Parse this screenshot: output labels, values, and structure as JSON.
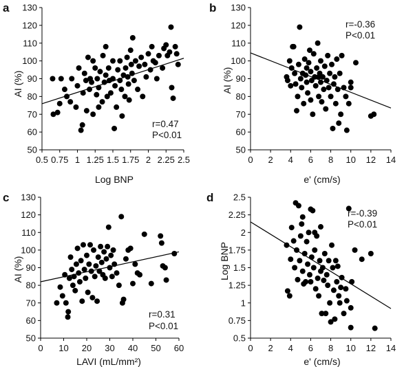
{
  "chart_data": [
    {
      "panel": "a",
      "type": "scatter",
      "xlabel": "Log BNP",
      "ylabel": "AI (%)",
      "xlim": [
        0.5,
        2.5
      ],
      "ylim": [
        50,
        130
      ],
      "xticks": [
        "0.5",
        "0.75",
        "1",
        "1.25",
        "1.5",
        "1.75",
        "2",
        "2.25",
        "2.5"
      ],
      "yticks": [
        "50",
        "60",
        "70",
        "80",
        "90",
        "100",
        "110",
        "120",
        "130"
      ],
      "annotations": [
        "r=0.47",
        "P<0.01"
      ],
      "trendline": [
        [
          0.5,
          75.9
        ],
        [
          2.5,
          101.5
        ]
      ],
      "points": [
        [
          0.65,
          90
        ],
        [
          0.66,
          70
        ],
        [
          0.72,
          71
        ],
        [
          0.75,
          76
        ],
        [
          0.77,
          90
        ],
        [
          0.82,
          84
        ],
        [
          0.85,
          80
        ],
        [
          0.9,
          77
        ],
        [
          0.92,
          90
        ],
        [
          0.98,
          74
        ],
        [
          1.0,
          86
        ],
        [
          1.02,
          96
        ],
        [
          1.05,
          61
        ],
        [
          1.07,
          64
        ],
        [
          1.08,
          82
        ],
        [
          1.1,
          93
        ],
        [
          1.12,
          89
        ],
        [
          1.13,
          72
        ],
        [
          1.15,
          102
        ],
        [
          1.17,
          84
        ],
        [
          1.18,
          90
        ],
        [
          1.2,
          88
        ],
        [
          1.22,
          70
        ],
        [
          1.22,
          100
        ],
        [
          1.25,
          96
        ],
        [
          1.27,
          81
        ],
        [
          1.28,
          90
        ],
        [
          1.3,
          85
        ],
        [
          1.3,
          74
        ],
        [
          1.32,
          94
        ],
        [
          1.35,
          77
        ],
        [
          1.36,
          103
        ],
        [
          1.38,
          88
        ],
        [
          1.4,
          108
        ],
        [
          1.4,
          92
        ],
        [
          1.42,
          80
        ],
        [
          1.44,
          96
        ],
        [
          1.45,
          89
        ],
        [
          1.47,
          82
        ],
        [
          1.5,
          100
        ],
        [
          1.5,
          90
        ],
        [
          1.52,
          62
        ],
        [
          1.53,
          86
        ],
        [
          1.55,
          74
        ],
        [
          1.57,
          95
        ],
        [
          1.6,
          89
        ],
        [
          1.6,
          100
        ],
        [
          1.62,
          84
        ],
        [
          1.63,
          69
        ],
        [
          1.65,
          92
        ],
        [
          1.67,
          80
        ],
        [
          1.68,
          96
        ],
        [
          1.7,
          102
        ],
        [
          1.71,
          91
        ],
        [
          1.72,
          87
        ],
        [
          1.73,
          78
        ],
        [
          1.75,
          106
        ],
        [
          1.76,
          98
        ],
        [
          1.77,
          93
        ],
        [
          1.78,
          113
        ],
        [
          1.8,
          89
        ],
        [
          1.82,
          100
        ],
        [
          1.85,
          84
        ],
        [
          1.87,
          97
        ],
        [
          1.9,
          102
        ],
        [
          1.92,
          80
        ],
        [
          1.95,
          98
        ],
        [
          1.97,
          91
        ],
        [
          2.0,
          104
        ],
        [
          2.03,
          95
        ],
        [
          2.05,
          108
        ],
        [
          2.07,
          100
        ],
        [
          2.1,
          99
        ],
        [
          2.12,
          90
        ],
        [
          2.15,
          103
        ],
        [
          2.2,
          96
        ],
        [
          2.22,
          107
        ],
        [
          2.25,
          109
        ],
        [
          2.27,
          103
        ],
        [
          2.3,
          105
        ],
        [
          2.32,
          119
        ],
        [
          2.33,
          85
        ],
        [
          2.35,
          79
        ],
        [
          2.38,
          108
        ],
        [
          2.4,
          104
        ],
        [
          2.42,
          98
        ]
      ]
    },
    {
      "panel": "b",
      "type": "scatter",
      "xlabel": "e' (cm/s)",
      "ylabel": "AI (%)",
      "xlim": [
        0,
        14
      ],
      "ylim": [
        50,
        130
      ],
      "xticks": [
        "0",
        "2",
        "4",
        "6",
        "8",
        "10",
        "12",
        "14"
      ],
      "yticks": [
        "50",
        "60",
        "70",
        "80",
        "90",
        "100",
        "110",
        "120",
        "130"
      ],
      "annotations": [
        "r=-0.36",
        "P<0.01"
      ],
      "trendline": [
        [
          0,
          104.5
        ],
        [
          14,
          73.5
        ]
      ],
      "points": [
        [
          3.6,
          91
        ],
        [
          3.7,
          89
        ],
        [
          3.9,
          100
        ],
        [
          4.0,
          86
        ],
        [
          4.1,
          96
        ],
        [
          4.3,
          108
        ],
        [
          4.4,
          93
        ],
        [
          4.5,
          87
        ],
        [
          4.6,
          72
        ],
        [
          4.7,
          80
        ],
        [
          4.8,
          98
        ],
        [
          4.9,
          119
        ],
        [
          5.0,
          90
        ],
        [
          5.1,
          85
        ],
        [
          5.2,
          93
        ],
        [
          5.3,
          76
        ],
        [
          5.4,
          101
        ],
        [
          5.5,
          92
        ],
        [
          5.6,
          88
        ],
        [
          5.7,
          82
        ],
        [
          5.8,
          99
        ],
        [
          5.9,
          106
        ],
        [
          6.0,
          94
        ],
        [
          6.0,
          78
        ],
        [
          6.1,
          89
        ],
        [
          6.2,
          70
        ],
        [
          6.3,
          104
        ],
        [
          6.4,
          91
        ],
        [
          6.5,
          86
        ],
        [
          6.6,
          96
        ],
        [
          6.7,
          110
        ],
        [
          6.8,
          80
        ],
        [
          6.9,
          93
        ],
        [
          7.0,
          88
        ],
        [
          7.0,
          100
        ],
        [
          7.1,
          77
        ],
        [
          7.2,
          91
        ],
        [
          7.3,
          84
        ],
        [
          7.4,
          97
        ],
        [
          7.5,
          73
        ],
        [
          7.6,
          89
        ],
        [
          7.7,
          103
        ],
        [
          7.8,
          85
        ],
        [
          7.9,
          93
        ],
        [
          8.0,
          80
        ],
        [
          8.1,
          98
        ],
        [
          8.2,
          62
        ],
        [
          8.3,
          87
        ],
        [
          8.4,
          91
        ],
        [
          8.5,
          76
        ],
        [
          8.6,
          101
        ],
        [
          8.7,
          84
        ],
        [
          8.8,
          65
        ],
        [
          8.9,
          93
        ],
        [
          9.0,
          70
        ],
        [
          9.1,
          103
        ],
        [
          9.3,
          85
        ],
        [
          9.5,
          80
        ],
        [
          9.6,
          61
        ],
        [
          9.8,
          76
        ],
        [
          10.0,
          85
        ],
        [
          10.0,
          88
        ],
        [
          10.5,
          99
        ],
        [
          12.0,
          69
        ],
        [
          12.3,
          70
        ],
        [
          4.2,
          108
        ],
        [
          5.6,
          96
        ],
        [
          6.8,
          91
        ]
      ]
    },
    {
      "panel": "c",
      "type": "scatter",
      "xlabel": "LAVI (mL/mm²)",
      "ylabel": "AI (%)",
      "xlim": [
        0,
        60
      ],
      "ylim": [
        50,
        130
      ],
      "xticks": [
        "0",
        "10",
        "20",
        "30",
        "40",
        "50",
        "60"
      ],
      "yticks": [
        "50",
        "60",
        "70",
        "80",
        "90",
        "100",
        "110",
        "120",
        "130"
      ],
      "annotations": [
        "r=0.31",
        "P<0.01"
      ],
      "trendline": [
        [
          0,
          82
        ],
        [
          60,
          99
        ]
      ],
      "points": [
        [
          7,
          70
        ],
        [
          8.5,
          79
        ],
        [
          9.5,
          74
        ],
        [
          10.5,
          86
        ],
        [
          11,
          70
        ],
        [
          11.8,
          62
        ],
        [
          12,
          65
        ],
        [
          12.5,
          84
        ],
        [
          13,
          96
        ],
        [
          13.5,
          89
        ],
        [
          14,
          80
        ],
        [
          14.5,
          85
        ],
        [
          15,
          77
        ],
        [
          15.5,
          92
        ],
        [
          16,
          101
        ],
        [
          16.5,
          87
        ],
        [
          17,
          82
        ],
        [
          17.5,
          94
        ],
        [
          18,
          71
        ],
        [
          18.5,
          103
        ],
        [
          19,
          89
        ],
        [
          19.5,
          84
        ],
        [
          20,
          97
        ],
        [
          20.5,
          76
        ],
        [
          21,
          92
        ],
        [
          21.5,
          103
        ],
        [
          22,
          88
        ],
        [
          22.5,
          73
        ],
        [
          23,
          100
        ],
        [
          23.5,
          85
        ],
        [
          24,
          91
        ],
        [
          24.5,
          71
        ],
        [
          25,
          96
        ],
        [
          25.5,
          88
        ],
        [
          26,
          102
        ],
        [
          26.5,
          93
        ],
        [
          27,
          86
        ],
        [
          27.5,
          99
        ],
        [
          28,
          84
        ],
        [
          28.5,
          95
        ],
        [
          29,
          102
        ],
        [
          29.5,
          113
        ],
        [
          30,
          90
        ],
        [
          30.5,
          97
        ],
        [
          31,
          85
        ],
        [
          31.5,
          100
        ],
        [
          32,
          92
        ],
        [
          33,
          87
        ],
        [
          34,
          80
        ],
        [
          35,
          119
        ],
        [
          35.5,
          70
        ],
        [
          36,
          72
        ],
        [
          37,
          95
        ],
        [
          38,
          100
        ],
        [
          39,
          101
        ],
        [
          40,
          81
        ],
        [
          41,
          92
        ],
        [
          42,
          87
        ],
        [
          43,
          86
        ],
        [
          45,
          109
        ],
        [
          48,
          81
        ],
        [
          52,
          108
        ],
        [
          52.5,
          104
        ],
        [
          53,
          91
        ],
        [
          54,
          90
        ],
        [
          54.5,
          83
        ],
        [
          58,
          98
        ]
      ]
    },
    {
      "panel": "d",
      "type": "scatter",
      "xlabel": "e' (cm/s)",
      "ylabel": "Log BNP",
      "xlim": [
        0,
        14
      ],
      "ylim": [
        0.5,
        2.5
      ],
      "xticks": [
        "0",
        "2",
        "4",
        "6",
        "8",
        "10",
        "12",
        "14"
      ],
      "yticks": [
        "0.5",
        "0.75",
        "1",
        "1.25",
        "1.5",
        "1.75",
        "2",
        "2.25",
        "2.5"
      ],
      "annotations": [
        "r=-0.39",
        "P<0.01"
      ],
      "trendline": [
        [
          0,
          2.15
        ],
        [
          14,
          0.92
        ]
      ],
      "points": [
        [
          3.6,
          1.82
        ],
        [
          3.7,
          1.17
        ],
        [
          3.9,
          1.1
        ],
        [
          4.0,
          1.62
        ],
        [
          4.1,
          2.07
        ],
        [
          4.3,
          1.88
        ],
        [
          4.4,
          1.5
        ],
        [
          4.5,
          2.42
        ],
        [
          4.6,
          1.75
        ],
        [
          4.7,
          1.33
        ],
        [
          4.8,
          2.38
        ],
        [
          4.9,
          1.6
        ],
        [
          5.0,
          1.95
        ],
        [
          5.1,
          2.12
        ],
        [
          5.2,
          1.45
        ],
        [
          5.3,
          1.27
        ],
        [
          5.4,
          1.7
        ],
        [
          5.5,
          1.3
        ],
        [
          5.6,
          1.87
        ],
        [
          5.7,
          1.55
        ],
        [
          5.8,
          2.0
        ],
        [
          5.9,
          1.4
        ],
        [
          6.0,
          2.33
        ],
        [
          6.0,
          1.3
        ],
        [
          6.1,
          1.65
        ],
        [
          6.2,
          2.31
        ],
        [
          6.3,
          1.5
        ],
        [
          6.4,
          1.75
        ],
        [
          6.5,
          1.2
        ],
        [
          6.6,
          1.95
        ],
        [
          6.7,
          1.35
        ],
        [
          6.8,
          1.1
        ],
        [
          6.9,
          1.6
        ],
        [
          7.0,
          2.08
        ],
        [
          7.0,
          1.45
        ],
        [
          7.1,
          0.85
        ],
        [
          7.2,
          1.5
        ],
        [
          7.3,
          1.32
        ],
        [
          7.4,
          1.7
        ],
        [
          7.5,
          0.85
        ],
        [
          7.6,
          1.4
        ],
        [
          7.7,
          1.25
        ],
        [
          7.8,
          1.6
        ],
        [
          7.9,
          1.0
        ],
        [
          8.0,
          0.73
        ],
        [
          8.1,
          1.82
        ],
        [
          8.2,
          1.5
        ],
        [
          8.3,
          1.18
        ],
        [
          8.4,
          0.77
        ],
        [
          8.5,
          1.6
        ],
        [
          8.6,
          1.3
        ],
        [
          8.7,
          1.52
        ],
        [
          8.8,
          1.1
        ],
        [
          8.9,
          1.0
        ],
        [
          9.0,
          1.22
        ],
        [
          9.1,
          1.36
        ],
        [
          9.3,
          0.85
        ],
        [
          9.5,
          1.2
        ],
        [
          9.6,
          1.03
        ],
        [
          9.8,
          2.34
        ],
        [
          10.0,
          0.93
        ],
        [
          10.0,
          0.65
        ],
        [
          10.1,
          1.3
        ],
        [
          10.4,
          1.75
        ],
        [
          11.1,
          1.62
        ],
        [
          12.0,
          1.7
        ],
        [
          12.4,
          0.64
        ],
        [
          5.2,
          2.22
        ],
        [
          6.4,
          2.0
        ]
      ]
    }
  ]
}
